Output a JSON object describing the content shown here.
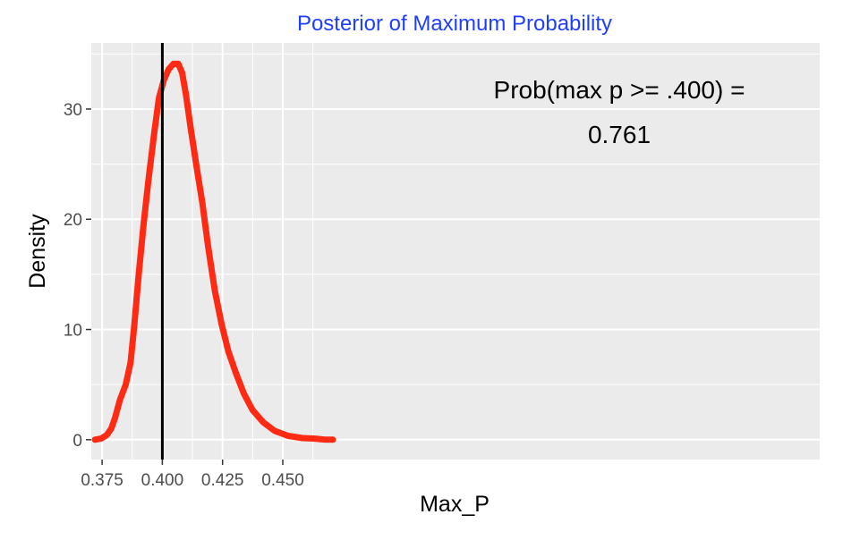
{
  "chart_data": {
    "type": "line",
    "title": "Posterior of Maximum Probability",
    "xlabel": "Max_P",
    "ylabel": "Density",
    "xlim": [
      0.3705,
      0.6729
    ],
    "ylim": [
      -1.8,
      36.0
    ],
    "x_ticks": [
      0.375,
      0.4,
      0.425,
      0.45
    ],
    "x_tick_labels": [
      "0.375",
      "0.400",
      "0.425",
      "0.450"
    ],
    "y_ticks": [
      0,
      10,
      20,
      30
    ],
    "y_tick_labels": [
      "0",
      "10",
      "20",
      "30"
    ],
    "grid": true,
    "panel_background": "#ebebeb",
    "grid_color": "#ffffff",
    "curve_color": "#ff2a14",
    "vline": {
      "x": 0.4,
      "color": "#000000"
    },
    "annotation": {
      "line1": "Prob(max p >= .400) =",
      "line2": "0.761"
    },
    "series": [
      {
        "name": "density",
        "x": [
          0.372,
          0.3745,
          0.3768,
          0.3788,
          0.3804,
          0.3824,
          0.3848,
          0.3868,
          0.3884,
          0.3902,
          0.3922,
          0.3942,
          0.3966,
          0.3986,
          0.4006,
          0.4026,
          0.4046,
          0.4066,
          0.4082,
          0.4098,
          0.4118,
          0.4142,
          0.4166,
          0.419,
          0.4218,
          0.4246,
          0.4274,
          0.4306,
          0.4338,
          0.4374,
          0.4418,
          0.4466,
          0.4522,
          0.4582,
          0.4634,
          0.467,
          0.4708
        ],
        "y": [
          0.0,
          0.1,
          0.4,
          1.0,
          2.0,
          3.6,
          5.0,
          7.0,
          10.5,
          15.0,
          19.5,
          23.5,
          27.8,
          31.0,
          32.6,
          33.6,
          34.1,
          34.1,
          33.3,
          31.3,
          28.2,
          24.8,
          21.5,
          17.5,
          13.5,
          10.5,
          8.0,
          6.0,
          4.2,
          2.7,
          1.6,
          0.8,
          0.35,
          0.15,
          0.1,
          0.02,
          0.0
        ]
      }
    ]
  }
}
